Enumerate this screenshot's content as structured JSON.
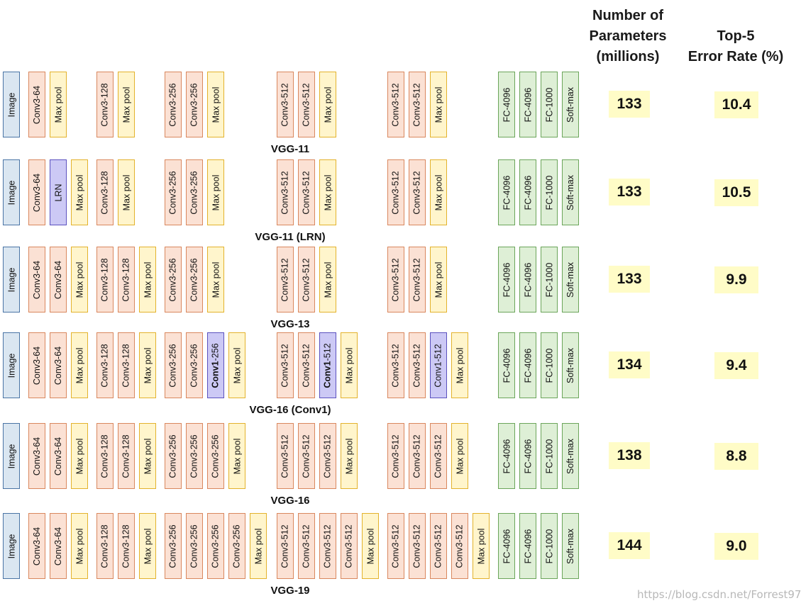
{
  "headers": {
    "params": [
      "Number of",
      "Parameters",
      "(millions)"
    ],
    "error": [
      "Top-5",
      "Error Rate (%)"
    ]
  },
  "block_labels": {
    "image": "Image",
    "lrn": "LRN",
    "fc4096": "FC-4096",
    "fc1000": "FC-1000",
    "softmax": "Soft-max"
  },
  "models": [
    {
      "name": "VGG-11",
      "params": "133",
      "error": "10.4",
      "groups": [
        [
          {
            "t": "conv",
            "label": "Conv3-64"
          },
          {
            "t": "pool",
            "label": "Max pool"
          }
        ],
        [
          {
            "t": "conv",
            "label": "Conv3-128"
          },
          {
            "t": "pool",
            "label": "Max pool"
          }
        ],
        [
          {
            "t": "conv",
            "label": "Conv3-256"
          },
          {
            "t": "conv",
            "label": "Conv3-256"
          },
          {
            "t": "pool",
            "label": "Max pool"
          }
        ],
        [
          {
            "t": "conv",
            "label": "Conv3-512"
          },
          {
            "t": "conv",
            "label": "Conv3-512"
          },
          {
            "t": "pool",
            "label": "Max pool"
          }
        ],
        [
          {
            "t": "conv",
            "label": "Conv3-512"
          },
          {
            "t": "conv",
            "label": "Conv3-512"
          },
          {
            "t": "pool",
            "label": "Max pool"
          }
        ]
      ]
    },
    {
      "name": "VGG-11 (LRN)",
      "params": "133",
      "error": "10.5",
      "groups": [
        [
          {
            "t": "conv",
            "label": "Conv3-64"
          },
          {
            "t": "special",
            "label": "LRN"
          },
          {
            "t": "pool",
            "label": "Max pool"
          }
        ],
        [
          {
            "t": "conv",
            "label": "Conv3-128"
          },
          {
            "t": "pool",
            "label": "Max pool"
          }
        ],
        [
          {
            "t": "conv",
            "label": "Conv3-256"
          },
          {
            "t": "conv",
            "label": "Conv3-256"
          },
          {
            "t": "pool",
            "label": "Max pool"
          }
        ],
        [
          {
            "t": "conv",
            "label": "Conv3-512"
          },
          {
            "t": "conv",
            "label": "Conv3-512"
          },
          {
            "t": "pool",
            "label": "Max pool"
          }
        ],
        [
          {
            "t": "conv",
            "label": "Conv3-512"
          },
          {
            "t": "conv",
            "label": "Conv3-512"
          },
          {
            "t": "pool",
            "label": "Max pool"
          }
        ]
      ]
    },
    {
      "name": "VGG-13",
      "params": "133",
      "error": "9.9",
      "groups": [
        [
          {
            "t": "conv",
            "label": "Conv3-64"
          },
          {
            "t": "conv",
            "label": "Conv3-64"
          },
          {
            "t": "pool",
            "label": "Max pool"
          }
        ],
        [
          {
            "t": "conv",
            "label": "Conv3-128"
          },
          {
            "t": "conv",
            "label": "Conv3-128"
          },
          {
            "t": "pool",
            "label": "Max pool"
          }
        ],
        [
          {
            "t": "conv",
            "label": "Conv3-256"
          },
          {
            "t": "conv",
            "label": "Conv3-256"
          },
          {
            "t": "pool",
            "label": "Max pool"
          }
        ],
        [
          {
            "t": "conv",
            "label": "Conv3-512"
          },
          {
            "t": "conv",
            "label": "Conv3-512"
          },
          {
            "t": "pool",
            "label": "Max pool"
          }
        ],
        [
          {
            "t": "conv",
            "label": "Conv3-512"
          },
          {
            "t": "conv",
            "label": "Conv3-512"
          },
          {
            "t": "pool",
            "label": "Max pool"
          }
        ]
      ]
    },
    {
      "name": "VGG-16 (Conv1)",
      "params": "134",
      "error": "9.4",
      "groups": [
        [
          {
            "t": "conv",
            "label": "Conv3-64"
          },
          {
            "t": "conv",
            "label": "Conv3-64"
          },
          {
            "t": "pool",
            "label": "Max pool"
          }
        ],
        [
          {
            "t": "conv",
            "label": "Conv3-128"
          },
          {
            "t": "conv",
            "label": "Conv3-128"
          },
          {
            "t": "pool",
            "label": "Max pool"
          }
        ],
        [
          {
            "t": "conv",
            "label": "Conv3-256"
          },
          {
            "t": "conv",
            "label": "Conv3-256"
          },
          {
            "t": "special",
            "label": "Conv1-256",
            "bold": "Conv1"
          },
          {
            "t": "pool",
            "label": "Max pool"
          }
        ],
        [
          {
            "t": "conv",
            "label": "Conv3-512"
          },
          {
            "t": "conv",
            "label": "Conv3-512"
          },
          {
            "t": "special",
            "label": "Conv1-512",
            "bold": "Conv1"
          },
          {
            "t": "pool",
            "label": "Max pool"
          }
        ],
        [
          {
            "t": "conv",
            "label": "Conv3-512"
          },
          {
            "t": "conv",
            "label": "Conv3-512"
          },
          {
            "t": "special",
            "label": "Conv1-512"
          },
          {
            "t": "pool",
            "label": "Max pool"
          }
        ]
      ]
    },
    {
      "name": "VGG-16",
      "params": "138",
      "error": "8.8",
      "groups": [
        [
          {
            "t": "conv",
            "label": "Conv3-64"
          },
          {
            "t": "conv",
            "label": "Conv3-64"
          },
          {
            "t": "pool",
            "label": "Max pool"
          }
        ],
        [
          {
            "t": "conv",
            "label": "Conv3-128"
          },
          {
            "t": "conv",
            "label": "Conv3-128"
          },
          {
            "t": "pool",
            "label": "Max pool"
          }
        ],
        [
          {
            "t": "conv",
            "label": "Conv3-256"
          },
          {
            "t": "conv",
            "label": "Conv3-256"
          },
          {
            "t": "conv",
            "label": "Conv3-256"
          },
          {
            "t": "pool",
            "label": "Max pool"
          }
        ],
        [
          {
            "t": "conv",
            "label": "Conv3-512"
          },
          {
            "t": "conv",
            "label": "Conv3-512"
          },
          {
            "t": "conv",
            "label": "Conv3-512"
          },
          {
            "t": "pool",
            "label": "Max pool"
          }
        ],
        [
          {
            "t": "conv",
            "label": "Conv3-512"
          },
          {
            "t": "conv",
            "label": "Conv3-512"
          },
          {
            "t": "conv",
            "label": "Conv3-512"
          },
          {
            "t": "pool",
            "label": "Max pool"
          }
        ]
      ]
    },
    {
      "name": "VGG-19",
      "params": "144",
      "error": "9.0",
      "groups": [
        [
          {
            "t": "conv",
            "label": "Conv3-64"
          },
          {
            "t": "conv",
            "label": "Conv3-64"
          },
          {
            "t": "pool",
            "label": "Max pool"
          }
        ],
        [
          {
            "t": "conv",
            "label": "Conv3-128"
          },
          {
            "t": "conv",
            "label": "Conv3-128"
          },
          {
            "t": "pool",
            "label": "Max pool"
          }
        ],
        [
          {
            "t": "conv",
            "label": "Conv3-256"
          },
          {
            "t": "conv",
            "label": "Conv3-256"
          },
          {
            "t": "conv",
            "label": "Conv3-256"
          },
          {
            "t": "conv",
            "label": "Conv3-256"
          },
          {
            "t": "pool",
            "label": "Max pool"
          }
        ],
        [
          {
            "t": "conv",
            "label": "Conv3-512"
          },
          {
            "t": "conv",
            "label": "Conv3-512"
          },
          {
            "t": "conv",
            "label": "Conv3-512"
          },
          {
            "t": "conv",
            "label": "Conv3-512"
          },
          {
            "t": "pool",
            "label": "Max pool"
          }
        ],
        [
          {
            "t": "conv",
            "label": "Conv3-512"
          },
          {
            "t": "conv",
            "label": "Conv3-512"
          },
          {
            "t": "conv",
            "label": "Conv3-512"
          },
          {
            "t": "conv",
            "label": "Conv3-512"
          },
          {
            "t": "pool",
            "label": "Max pool"
          }
        ]
      ]
    }
  ],
  "watermark": "https://blog.csdn.net/Forrest97"
}
